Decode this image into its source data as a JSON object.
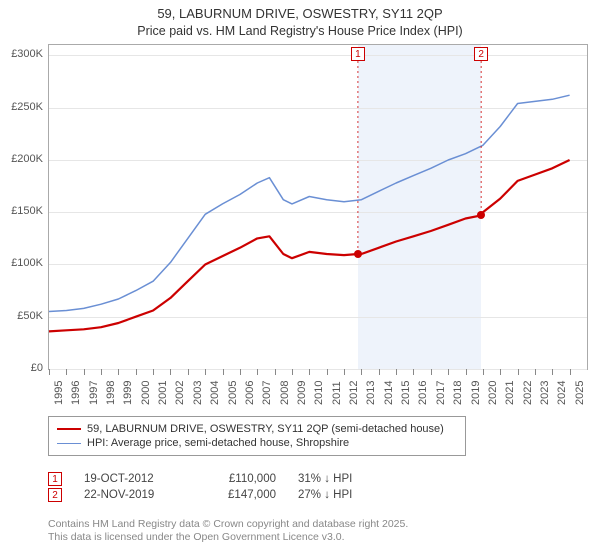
{
  "title": {
    "line1": "59, LABURNUM DRIVE, OSWESTRY, SY11 2QP",
    "line2": "Price paid vs. HM Land Registry's House Price Index (HPI)"
  },
  "chart": {
    "type": "line",
    "background_color": "#ffffff",
    "grid_color": "#e6e6e6",
    "axis_color": "#888888",
    "x_years": [
      1995,
      1996,
      1997,
      1998,
      1999,
      2000,
      2001,
      2002,
      2003,
      2004,
      2005,
      2006,
      2007,
      2008,
      2009,
      2010,
      2011,
      2012,
      2013,
      2014,
      2015,
      2016,
      2017,
      2018,
      2019,
      2020,
      2021,
      2022,
      2023,
      2024,
      2025
    ],
    "x_min": 1995,
    "x_max": 2026,
    "y_min": 0,
    "y_max": 310000,
    "y_ticks": [
      0,
      50000,
      100000,
      150000,
      200000,
      250000,
      300000
    ],
    "y_tick_labels": [
      "£0",
      "£50K",
      "£100K",
      "£150K",
      "£200K",
      "£250K",
      "£300K"
    ],
    "highlight_band": {
      "x_from": 2012.8,
      "x_to": 2019.9,
      "color": "#eef3fb"
    },
    "series": [
      {
        "name": "hpi",
        "label": "HPI: Average price, semi-detached house, Shropshire",
        "color": "#6a8fd4",
        "line_width": 1.5,
        "points": [
          [
            1995,
            55000
          ],
          [
            1996,
            56000
          ],
          [
            1997,
            58000
          ],
          [
            1998,
            62000
          ],
          [
            1999,
            67000
          ],
          [
            2000,
            75000
          ],
          [
            2001,
            84000
          ],
          [
            2002,
            102000
          ],
          [
            2003,
            125000
          ],
          [
            2004,
            148000
          ],
          [
            2005,
            158000
          ],
          [
            2006,
            167000
          ],
          [
            2007,
            178000
          ],
          [
            2007.7,
            183000
          ],
          [
            2008.5,
            162000
          ],
          [
            2009,
            158000
          ],
          [
            2010,
            165000
          ],
          [
            2011,
            162000
          ],
          [
            2012,
            160000
          ],
          [
            2013,
            162000
          ],
          [
            2014,
            170000
          ],
          [
            2015,
            178000
          ],
          [
            2016,
            185000
          ],
          [
            2017,
            192000
          ],
          [
            2018,
            200000
          ],
          [
            2019,
            206000
          ],
          [
            2020,
            214000
          ],
          [
            2021,
            232000
          ],
          [
            2022,
            254000
          ],
          [
            2023,
            256000
          ],
          [
            2024,
            258000
          ],
          [
            2025,
            262000
          ]
        ]
      },
      {
        "name": "price_paid",
        "label": "59, LABURNUM DRIVE, OSWESTRY, SY11 2QP (semi-detached house)",
        "color": "#cc0000",
        "line_width": 2.2,
        "points": [
          [
            1995,
            36000
          ],
          [
            1996,
            37000
          ],
          [
            1997,
            38000
          ],
          [
            1998,
            40000
          ],
          [
            1999,
            44000
          ],
          [
            2000,
            50000
          ],
          [
            2001,
            56000
          ],
          [
            2002,
            68000
          ],
          [
            2003,
            84000
          ],
          [
            2004,
            100000
          ],
          [
            2005,
            108000
          ],
          [
            2006,
            116000
          ],
          [
            2007,
            125000
          ],
          [
            2007.7,
            127000
          ],
          [
            2008.5,
            110000
          ],
          [
            2009,
            106000
          ],
          [
            2010,
            112000
          ],
          [
            2011,
            110000
          ],
          [
            2012,
            109000
          ],
          [
            2012.8,
            110000
          ],
          [
            2013,
            110000
          ],
          [
            2014,
            116000
          ],
          [
            2015,
            122000
          ],
          [
            2016,
            127000
          ],
          [
            2017,
            132000
          ],
          [
            2018,
            138000
          ],
          [
            2019,
            144000
          ],
          [
            2019.9,
            147000
          ],
          [
            2020,
            150000
          ],
          [
            2021,
            163000
          ],
          [
            2022,
            180000
          ],
          [
            2023,
            186000
          ],
          [
            2024,
            192000
          ],
          [
            2025,
            200000
          ]
        ]
      }
    ],
    "sale_markers": [
      {
        "n": "1",
        "x": 2012.8,
        "y": 110000,
        "box_top": true,
        "color": "#cc0000"
      },
      {
        "n": "2",
        "x": 2019.9,
        "y": 147000,
        "box_top": true,
        "color": "#cc0000"
      }
    ]
  },
  "legend": {
    "items": [
      {
        "color": "#cc0000",
        "width": 2.2,
        "label": "59, LABURNUM DRIVE, OSWESTRY, SY11 2QP (semi-detached house)"
      },
      {
        "color": "#6a8fd4",
        "width": 1.5,
        "label": "HPI: Average price, semi-detached house, Shropshire"
      }
    ]
  },
  "sale_table": {
    "rows": [
      {
        "n": "1",
        "color": "#cc0000",
        "date": "19-OCT-2012",
        "price": "£110,000",
        "delta": "31% ↓ HPI"
      },
      {
        "n": "2",
        "color": "#cc0000",
        "date": "22-NOV-2019",
        "price": "£147,000",
        "delta": "27% ↓ HPI"
      }
    ]
  },
  "footer": {
    "line1": "Contains HM Land Registry data © Crown copyright and database right 2025.",
    "line2": "This data is licensed under the Open Government Licence v3.0."
  },
  "typography": {
    "title_fontsize": 13,
    "axis_label_fontsize": 11,
    "legend_fontsize": 11,
    "footer_fontsize": 10.5
  }
}
